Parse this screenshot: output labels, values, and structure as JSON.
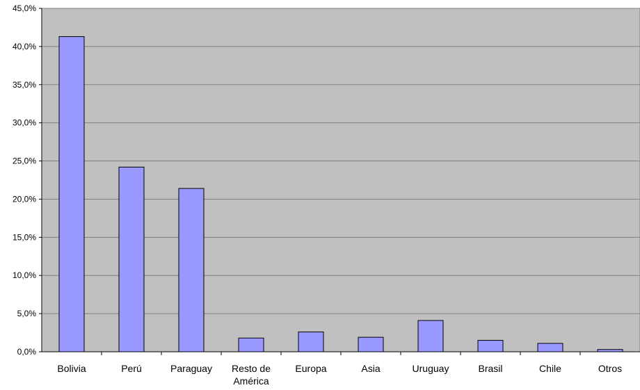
{
  "chart_data": {
    "type": "bar",
    "categories": [
      "Bolivia",
      "Perú",
      "Paraguay",
      "Resto de América",
      "Europa",
      "Asia",
      "Uruguay",
      "Brasil",
      "Chile",
      "Otros"
    ],
    "category_lines": [
      [
        "Bolivia"
      ],
      [
        "Perú"
      ],
      [
        "Paraguay"
      ],
      [
        "Resto de",
        "América"
      ],
      [
        "Europa"
      ],
      [
        "Asia"
      ],
      [
        "Uruguay"
      ],
      [
        "Brasil"
      ],
      [
        "Chile"
      ],
      [
        "Otros"
      ]
    ],
    "values": [
      41.3,
      24.2,
      21.4,
      1.8,
      2.6,
      1.9,
      4.1,
      1.5,
      1.1,
      0.3
    ],
    "ylim": [
      0,
      45
    ],
    "yticks": [
      0,
      5,
      10,
      15,
      20,
      25,
      30,
      35,
      40,
      45
    ],
    "ytick_labels": [
      "0,0%",
      "5,0%",
      "10,0%",
      "15,0%",
      "20,0%",
      "25,0%",
      "30,0%",
      "35,0%",
      "40,0%",
      "45,0%"
    ],
    "title": "",
    "xlabel": "",
    "ylabel": "",
    "grid": true,
    "legend": false,
    "colors": {
      "bar_fill": "#9999ff",
      "bar_stroke": "#000000",
      "plot_bg": "#c0c0c0",
      "grid": "#808080"
    }
  }
}
